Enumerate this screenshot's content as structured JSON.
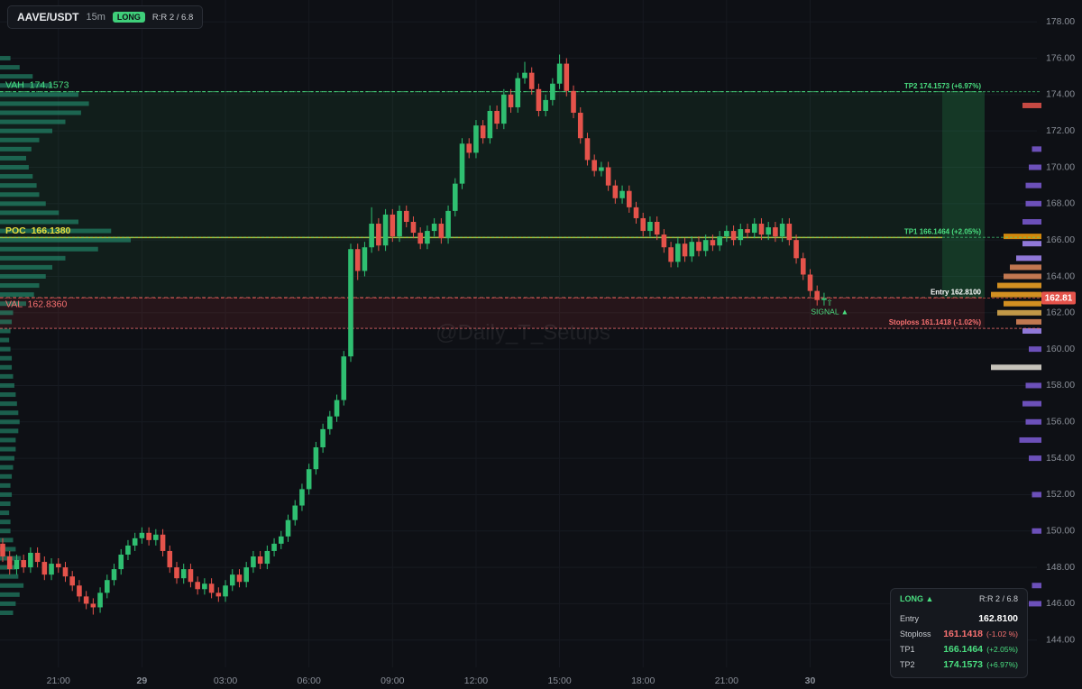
{
  "chart_data": {
    "type": "candlestick",
    "up_color": "#2fbf71",
    "down_color": "#e5534b",
    "ylim": [
      142.5,
      179.2
    ],
    "yticks": [
      {
        "value": 144,
        "label": "144.00"
      },
      {
        "value": 146,
        "label": "146.00"
      },
      {
        "value": 148,
        "label": "148.00"
      },
      {
        "value": 150,
        "label": "150.00"
      },
      {
        "value": 152,
        "label": "152.00"
      },
      {
        "value": 154,
        "label": "154.00"
      },
      {
        "value": 156,
        "label": "156.00"
      },
      {
        "value": 158,
        "label": "158.00"
      },
      {
        "value": 160,
        "label": "160.00"
      },
      {
        "value": 162,
        "label": "162.00"
      },
      {
        "value": 164,
        "label": "164.00"
      },
      {
        "value": 166,
        "label": "166.00"
      },
      {
        "value": 168,
        "label": "168.00"
      },
      {
        "value": 170,
        "label": "170.00"
      },
      {
        "value": 172,
        "label": "172.00"
      },
      {
        "value": 174,
        "label": "174.00"
      },
      {
        "value": 176,
        "label": "176.00"
      },
      {
        "value": 178,
        "label": "178.00"
      }
    ],
    "grid": true,
    "categories": [
      null,
      null,
      null,
      null,
      null,
      null,
      null,
      null,
      "21:00",
      null,
      null,
      null,
      null,
      null,
      null,
      null,
      null,
      null,
      null,
      null,
      "29",
      null,
      null,
      null,
      null,
      null,
      null,
      null,
      null,
      null,
      null,
      null,
      "03:00",
      null,
      null,
      null,
      null,
      null,
      null,
      null,
      null,
      null,
      null,
      null,
      "06:00",
      null,
      null,
      null,
      null,
      null,
      null,
      null,
      null,
      null,
      null,
      null,
      "09:00",
      null,
      null,
      null,
      null,
      null,
      null,
      null,
      null,
      null,
      null,
      null,
      "12:00",
      null,
      null,
      null,
      null,
      null,
      null,
      null,
      null,
      null,
      null,
      null,
      "15:00",
      null,
      null,
      null,
      null,
      null,
      null,
      null,
      null,
      null,
      null,
      null,
      "18:00",
      null,
      null,
      null,
      null,
      null,
      null,
      null,
      null,
      null,
      null,
      null,
      "21:00",
      null,
      null,
      null,
      null,
      null,
      null,
      null,
      null,
      null,
      null,
      null,
      "30",
      null,
      null
    ],
    "open": [
      149.3,
      148.6,
      147.9,
      148.4,
      148.0,
      148.8,
      148.3,
      147.6,
      148.2,
      148.0,
      147.5,
      147.0,
      146.4,
      146.0,
      145.8,
      146.6,
      147.3,
      147.9,
      148.7,
      149.2,
      149.6,
      149.9,
      149.5,
      149.8,
      148.9,
      148.0,
      147.4,
      147.9,
      147.2,
      146.8,
      147.1,
      146.6,
      146.4,
      147.0,
      147.6,
      147.2,
      148.0,
      148.6,
      148.2,
      148.9,
      149.3,
      149.7,
      150.6,
      151.4,
      152.3,
      153.4,
      154.6,
      155.6,
      156.3,
      157.2,
      159.6,
      165.5,
      164.3,
      165.6,
      166.9,
      165.7,
      167.4,
      166.2,
      167.6,
      167.0,
      166.4,
      165.8,
      166.5,
      166.9,
      166.1,
      167.6,
      169.1,
      171.3,
      170.8,
      172.3,
      171.6,
      173.1,
      172.4,
      174.0,
      173.3,
      174.9,
      175.2,
      174.3,
      173.1,
      173.7,
      174.6,
      175.7,
      174.2,
      173.0,
      171.6,
      170.4,
      169.8,
      170.0,
      169.0,
      168.3,
      168.7,
      167.8,
      167.2,
      166.5,
      167.0,
      166.3,
      165.6,
      164.8,
      165.8,
      165.1,
      165.9,
      165.4,
      166.0,
      165.7,
      166.2,
      166.5,
      166.0,
      166.6,
      166.4,
      166.9,
      166.3,
      166.7,
      166.2,
      166.9,
      166.0,
      165.0,
      164.1,
      163.2,
      162.7
    ],
    "high": [
      149.6,
      148.9,
      148.7,
      148.7,
      149.1,
      149.1,
      148.6,
      148.5,
      148.5,
      148.3,
      147.8,
      147.3,
      146.7,
      146.3,
      146.9,
      147.6,
      148.2,
      149.0,
      149.5,
      149.9,
      150.2,
      150.2,
      150.1,
      150.1,
      149.2,
      148.3,
      148.2,
      148.2,
      147.5,
      147.4,
      147.4,
      146.9,
      147.3,
      147.9,
      147.9,
      148.3,
      148.9,
      148.9,
      149.2,
      149.6,
      150.0,
      150.9,
      151.7,
      152.6,
      153.7,
      154.9,
      155.9,
      156.6,
      157.5,
      159.9,
      165.8,
      165.8,
      165.9,
      167.8,
      167.2,
      167.7,
      167.7,
      167.9,
      167.9,
      167.3,
      166.7,
      166.8,
      167.2,
      167.2,
      167.9,
      169.4,
      171.6,
      171.6,
      172.6,
      172.6,
      173.4,
      173.4,
      174.3,
      174.3,
      175.2,
      175.8,
      175.5,
      174.6,
      174.0,
      174.9,
      176.2,
      176.0,
      174.5,
      173.3,
      171.9,
      170.7,
      170.3,
      170.3,
      169.3,
      169.0,
      169.0,
      168.1,
      167.5,
      167.3,
      167.3,
      166.6,
      165.9,
      166.1,
      166.1,
      166.2,
      166.2,
      166.3,
      166.3,
      166.5,
      166.8,
      166.8,
      166.9,
      166.9,
      167.2,
      167.2,
      167.0,
      167.0,
      167.2,
      167.2,
      166.3,
      165.3,
      164.4,
      163.5,
      163.1
    ],
    "low": [
      148.3,
      147.6,
      147.6,
      147.7,
      147.7,
      148.0,
      147.3,
      147.3,
      147.7,
      147.2,
      146.7,
      146.1,
      145.7,
      145.4,
      145.5,
      146.3,
      147.0,
      147.6,
      148.4,
      148.9,
      149.3,
      149.2,
      149.2,
      148.6,
      147.7,
      147.1,
      147.1,
      146.9,
      146.5,
      146.5,
      146.3,
      146.1,
      146.1,
      146.7,
      146.9,
      146.9,
      147.7,
      147.9,
      147.9,
      148.6,
      149.0,
      149.4,
      150.3,
      151.1,
      152.0,
      153.1,
      154.3,
      155.3,
      156.0,
      156.9,
      159.3,
      163.8,
      164.0,
      165.3,
      165.4,
      165.4,
      165.9,
      165.9,
      166.7,
      166.1,
      165.5,
      165.5,
      166.2,
      165.8,
      165.8,
      167.3,
      168.8,
      170.5,
      170.5,
      171.3,
      171.3,
      172.1,
      172.1,
      173.0,
      173.0,
      174.6,
      174.0,
      172.8,
      172.8,
      173.4,
      174.3,
      173.9,
      172.7,
      171.3,
      170.1,
      169.5,
      169.5,
      168.7,
      168.0,
      168.0,
      167.5,
      166.9,
      166.2,
      166.2,
      166.0,
      165.3,
      164.5,
      164.5,
      164.8,
      164.8,
      165.1,
      165.1,
      165.4,
      165.4,
      165.9,
      165.7,
      165.7,
      166.1,
      166.1,
      166.0,
      166.0,
      165.9,
      165.9,
      165.7,
      164.7,
      163.8,
      162.9,
      162.4,
      162.4
    ],
    "close": [
      148.6,
      147.9,
      148.4,
      148.0,
      148.8,
      148.3,
      147.6,
      148.2,
      148.0,
      147.5,
      147.0,
      146.4,
      146.0,
      145.8,
      146.6,
      147.3,
      147.9,
      148.7,
      149.2,
      149.6,
      149.9,
      149.5,
      149.8,
      148.9,
      148.0,
      147.4,
      147.9,
      147.2,
      146.8,
      147.1,
      146.6,
      146.4,
      147.0,
      147.6,
      147.2,
      148.0,
      148.6,
      148.2,
      148.9,
      149.3,
      149.7,
      150.6,
      151.4,
      152.3,
      153.4,
      154.6,
      155.6,
      156.3,
      157.2,
      159.6,
      165.5,
      164.3,
      165.6,
      166.9,
      165.7,
      167.4,
      166.2,
      167.6,
      167.0,
      166.4,
      165.8,
      166.5,
      166.9,
      166.1,
      167.6,
      169.1,
      171.3,
      170.8,
      172.3,
      171.6,
      173.1,
      172.4,
      174.0,
      173.3,
      174.9,
      175.2,
      174.3,
      173.1,
      173.7,
      174.6,
      175.7,
      174.2,
      173.0,
      171.6,
      170.4,
      169.8,
      170.0,
      169.0,
      168.3,
      168.7,
      167.8,
      167.2,
      166.5,
      167.0,
      166.3,
      165.6,
      164.8,
      165.8,
      165.1,
      165.9,
      165.4,
      166.0,
      165.7,
      166.2,
      166.5,
      166.0,
      166.6,
      166.4,
      166.9,
      166.3,
      166.7,
      166.2,
      166.9,
      166.0,
      165.0,
      164.1,
      163.2,
      162.7,
      162.8
    ],
    "levels": [
      {
        "label": "VAH  174.1573",
        "value": 174.1573,
        "color": "#4ade80",
        "style": "dashed"
      },
      {
        "label": "POC  166.1380",
        "value": 166.138,
        "color": "#e6dc3c",
        "style": "solid"
      },
      {
        "label": "VAL  162.8360",
        "value": 162.836,
        "color": "#f87171",
        "style": "dashed"
      }
    ],
    "targets": [
      {
        "label": "TP2 174.1573 (+6.97%)",
        "value": 174.1573,
        "color": "#4ade80"
      },
      {
        "label": "TP1 166.1464 (+2.05%)",
        "value": 166.1464,
        "color": "#4ade80"
      },
      {
        "label": "Entry 162.8100",
        "value": 162.81,
        "color": "#ffffff"
      },
      {
        "label": "Stoploss 161.1418 (-1.02%)",
        "value": 161.1418,
        "color": "#f87171"
      }
    ],
    "last_price": 162.81,
    "signal": "SIGNAL ▲",
    "volume_profile": {
      "color": "#26a17b",
      "prices": [
        145.5,
        146,
        146.5,
        147,
        147.5,
        148,
        148.5,
        149,
        149.5,
        150,
        150.5,
        151,
        151.5,
        152,
        152.5,
        153,
        153.5,
        154,
        154.5,
        155,
        155.5,
        156,
        156.5,
        157,
        157.5,
        158,
        158.5,
        159,
        159.5,
        160,
        160.5,
        161,
        161.5,
        162,
        162.5,
        163,
        163.5,
        164,
        164.5,
        165,
        165.5,
        166,
        166.5,
        167,
        167.5,
        168,
        168.5,
        169,
        169.5,
        170,
        170.5,
        171,
        171.5,
        172,
        172.5,
        173,
        173.5,
        174,
        174.5,
        175,
        175.5,
        176
      ],
      "values": [
        10,
        12,
        15,
        18,
        14,
        12,
        16,
        12,
        10,
        8,
        8,
        7,
        8,
        9,
        8,
        9,
        10,
        11,
        12,
        12,
        14,
        15,
        14,
        13,
        12,
        11,
        10,
        9,
        9,
        8,
        7,
        8,
        9,
        10,
        20,
        26,
        30,
        35,
        40,
        50,
        75,
        100,
        85,
        60,
        45,
        35,
        30,
        28,
        25,
        22,
        20,
        24,
        30,
        40,
        50,
        62,
        68,
        60,
        40,
        25,
        15,
        8
      ]
    },
    "session_profile": {
      "prices": [
        173.4,
        171,
        170,
        169,
        168,
        167,
        166.2,
        165.8,
        165,
        164.5,
        164,
        163.5,
        163,
        162.5,
        162,
        161.5,
        161,
        160,
        159,
        158,
        157,
        156,
        155,
        154,
        152,
        150,
        147,
        146
      ],
      "values": [
        6,
        3,
        4,
        5,
        5,
        6,
        12,
        6,
        8,
        10,
        12,
        14,
        16,
        12,
        14,
        8,
        6,
        4,
        16,
        5,
        6,
        5,
        7,
        4,
        3,
        3,
        3,
        4
      ],
      "colors": [
        "#e5534b",
        "#7c5cd6",
        "#7c5cd6",
        "#7c5cd6",
        "#7c5cd6",
        "#7c5cd6",
        "#f59e0b",
        "#a78bfa",
        "#a78bfa",
        "#e08a5a",
        "#e08a5a",
        "#f5a623",
        "#f5a623",
        "#f5a623",
        "#e0b050",
        "#e08a5a",
        "#a78bfa",
        "#7c5cd6",
        "#e8e4d8",
        "#7c5cd6",
        "#7c5cd6",
        "#7c5cd6",
        "#7c5cd6",
        "#7c5cd6",
        "#7c5cd6",
        "#7c5cd6",
        "#7c5cd6",
        "#7c5cd6"
      ]
    }
  },
  "header": {
    "symbol": "AAVE/USDT",
    "interval": "15m",
    "side": "LONG",
    "rr": "R:R 2 / 6.8"
  },
  "watermark": "@Daily_T_Setups",
  "panel": {
    "title": "LONG ▲",
    "rr": "R:R 2 / 6.8",
    "rows": [
      [
        "Entry",
        "162.8100"
      ],
      [
        "Stoploss",
        "161.1418",
        "(-1.02 %)"
      ],
      [
        "TP1",
        "166.1464",
        "(+2.05%)"
      ],
      [
        "TP2",
        "174.1573",
        "(+6.97%)"
      ]
    ]
  }
}
